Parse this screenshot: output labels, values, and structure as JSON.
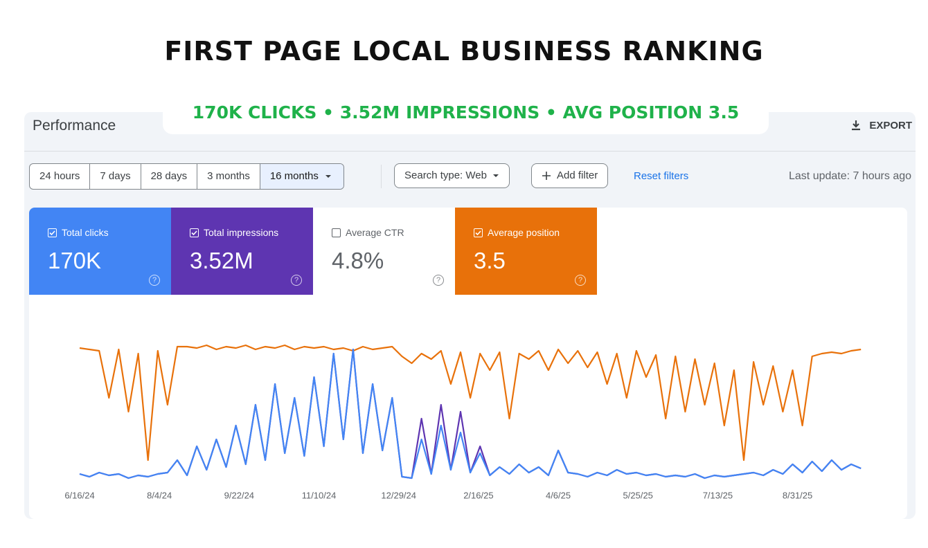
{
  "header": {
    "title": "FIRST PAGE LOCAL BUSINESS RANKING",
    "subtitle": "170K CLICKS • 3.52M IMPRESSIONS • AVG POSITION 3.5"
  },
  "app": {
    "page_title": "Performance",
    "export": "EXPORT"
  },
  "date_ranges": [
    "24 hours",
    "7 days",
    "28 days",
    "3 months",
    "16 months"
  ],
  "selected_range": 4,
  "filters": {
    "search_type": "Search type: Web",
    "add_filter": "Add filter",
    "reset": "Reset filters"
  },
  "last_update": "Last update: 7 hours ago",
  "metrics": [
    {
      "label": "Total clicks",
      "value": "170K",
      "checked": true,
      "color": "#4285f4"
    },
    {
      "label": "Total impressions",
      "value": "3.52M",
      "checked": true,
      "color": "#5e35b1"
    },
    {
      "label": "Average CTR",
      "value": "4.8%",
      "checked": false,
      "color": "#ffffff"
    },
    {
      "label": "Average position",
      "value": "3.5",
      "checked": true,
      "color": "#e8710a"
    }
  ],
  "chart_data": {
    "type": "line",
    "xlim": [
      0,
      485
    ],
    "ylim": [
      0,
      100
    ],
    "xticks": [
      {
        "value": 0,
        "label": "6/16/24"
      },
      {
        "value": 49,
        "label": "8/4/24"
      },
      {
        "value": 98,
        "label": "9/22/24"
      },
      {
        "value": 147,
        "label": "11/10/24"
      },
      {
        "value": 196,
        "label": "12/29/24"
      },
      {
        "value": 245,
        "label": "2/16/25"
      },
      {
        "value": 294,
        "label": "4/6/25"
      },
      {
        "value": 343,
        "label": "5/25/25"
      },
      {
        "value": 392,
        "label": "7/13/25"
      },
      {
        "value": 441,
        "label": "8/31/25"
      }
    ],
    "x": [
      0,
      6,
      12,
      18,
      24,
      30,
      36,
      42,
      48,
      54,
      60,
      66,
      72,
      78,
      84,
      90,
      96,
      102,
      108,
      114,
      120,
      126,
      132,
      138,
      144,
      150,
      156,
      162,
      168,
      174,
      180,
      186,
      192,
      198,
      204,
      210,
      216,
      222,
      228,
      234,
      240,
      246,
      252,
      258,
      264,
      270,
      276,
      282,
      288,
      294,
      300,
      306,
      312,
      318,
      324,
      330,
      336,
      342,
      348,
      354,
      360,
      366,
      372,
      378,
      384,
      390,
      396,
      402,
      408,
      414,
      420,
      426,
      432,
      438,
      444,
      450,
      456,
      462,
      468,
      474,
      480
    ],
    "series": [
      {
        "color": "#e8710a",
        "values": [
          96,
          95,
          94,
          60,
          95,
          50,
          92,
          15,
          94,
          55,
          97,
          97,
          96,
          98,
          95,
          97,
          96,
          98,
          95,
          97,
          96,
          98,
          95,
          97,
          96,
          97,
          95,
          96,
          94,
          97,
          95,
          96,
          97,
          90,
          85,
          92,
          88,
          94,
          70,
          93,
          60,
          92,
          80,
          93,
          45,
          92,
          88,
          94,
          80,
          95,
          85,
          94,
          82,
          93,
          70,
          92,
          60,
          94,
          75,
          91,
          45,
          90,
          50,
          88,
          55,
          85,
          40,
          80,
          15,
          86,
          55,
          83,
          50,
          80,
          40,
          90,
          92,
          93,
          92,
          94,
          95
        ]
      },
      {
        "color": "#5e35b1",
        "values": [
          5,
          3,
          6,
          4,
          5,
          2,
          4,
          3,
          5,
          6,
          15,
          4,
          25,
          8,
          30,
          10,
          40,
          12,
          55,
          15,
          70,
          20,
          60,
          18,
          75,
          25,
          92,
          30,
          95,
          20,
          70,
          22,
          60,
          3,
          2,
          45,
          5,
          55,
          8,
          50,
          6,
          25,
          4,
          10,
          5,
          12,
          6,
          10,
          4,
          22,
          6,
          5,
          3,
          6,
          4,
          8,
          5,
          6,
          4,
          5,
          3,
          4,
          3,
          5,
          2,
          4,
          3,
          4,
          5,
          6,
          4,
          8,
          5,
          12,
          6,
          14,
          7,
          15,
          8,
          12,
          9
        ]
      },
      {
        "color": "#4285f4",
        "values": [
          5,
          3,
          6,
          4,
          5,
          2,
          4,
          3,
          5,
          6,
          15,
          4,
          25,
          8,
          30,
          10,
          40,
          12,
          55,
          15,
          70,
          20,
          60,
          18,
          75,
          25,
          92,
          30,
          95,
          20,
          70,
          22,
          60,
          3,
          2,
          30,
          5,
          40,
          8,
          35,
          6,
          20,
          4,
          10,
          5,
          12,
          6,
          10,
          4,
          22,
          6,
          5,
          3,
          6,
          4,
          8,
          5,
          6,
          4,
          5,
          3,
          4,
          3,
          5,
          2,
          4,
          3,
          4,
          5,
          6,
          4,
          8,
          5,
          12,
          6,
          14,
          7,
          15,
          8,
          12,
          9
        ]
      }
    ]
  }
}
